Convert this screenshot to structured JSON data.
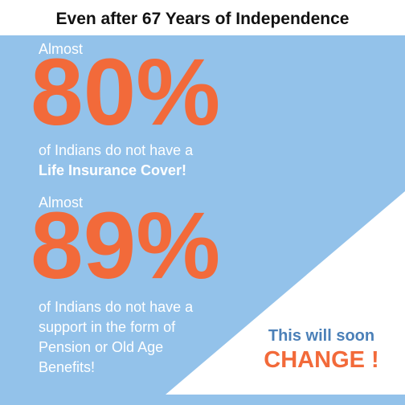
{
  "title": "Even after 67 Years of Independence",
  "stats": [
    {
      "lead": "Almost",
      "figure": "80%",
      "text": [
        "of Indians do not have a",
        "Life Insurance Cover!"
      ]
    },
    {
      "lead": "Almost",
      "figure": "89%",
      "text": [
        "of Indians do not have a",
        "support in the form of",
        "Pension or Old Age",
        "Benefits!"
      ]
    }
  ],
  "callout": {
    "line1": "This will soon",
    "line2": "CHANGE !"
  }
}
